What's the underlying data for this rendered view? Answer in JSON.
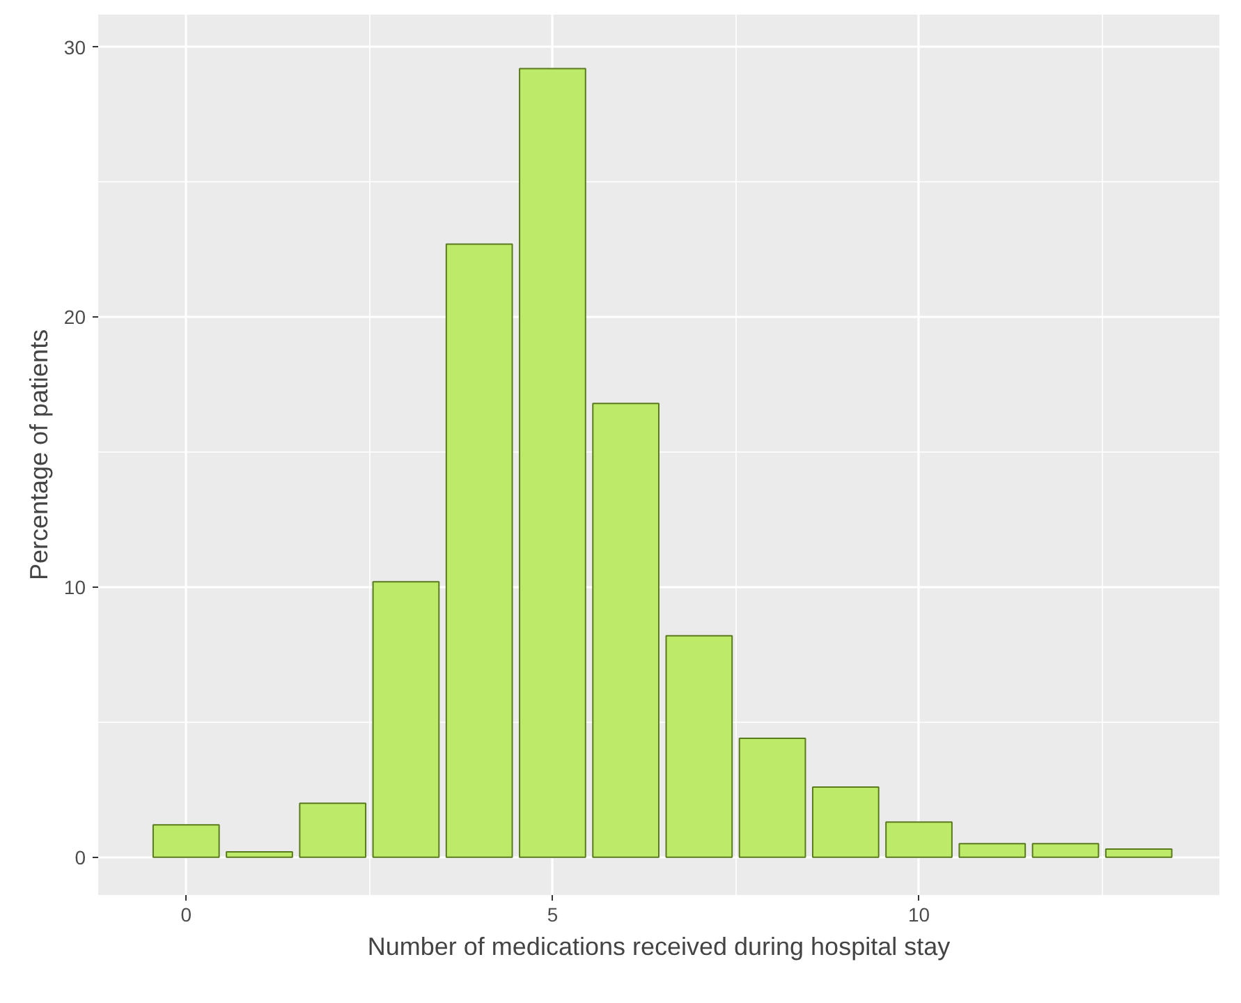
{
  "chart_data": {
    "type": "bar",
    "xlabel": "Number of medications received during hospital stay",
    "ylabel": "Percentage of patients",
    "x": [
      0,
      1,
      2,
      3,
      4,
      5,
      6,
      7,
      8,
      9,
      10,
      11,
      12,
      13
    ],
    "values": [
      1.2,
      0.2,
      2.0,
      10.2,
      22.7,
      29.2,
      16.8,
      8.2,
      4.4,
      2.6,
      1.3,
      0.5,
      0.5,
      0.3
    ],
    "color": "#bdea68",
    "xlim": [
      -1.2,
      14.1
    ],
    "ylim": [
      -1.4,
      31.2
    ],
    "xticks": [
      0,
      5,
      10
    ],
    "yticks": [
      0,
      10,
      20,
      30
    ],
    "grid": true
  }
}
